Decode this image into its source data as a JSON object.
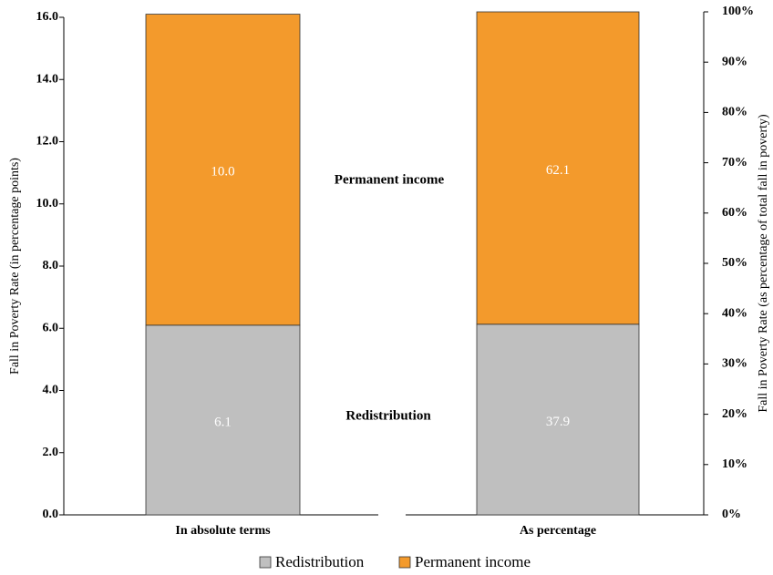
{
  "chart_data": [
    {
      "type": "stacked_bar",
      "y_label": "Fall in Poverty Rate (in percentage points)",
      "categories": [
        "In absolute terms"
      ],
      "series": [
        {
          "name": "Redistribution",
          "color": "#bfbfbf",
          "values": [
            6.1
          ]
        },
        {
          "name": "Permanent income",
          "color": "#f39a2c",
          "values": [
            10.0
          ],
          "value_labels": [
            "10.0"
          ]
        }
      ],
      "ylim": [
        0,
        16
      ],
      "yticks": [
        {
          "value": 0,
          "label": "0.0"
        },
        {
          "value": 2,
          "label": "2.0"
        },
        {
          "value": 4,
          "label": "4.0"
        },
        {
          "value": 6,
          "label": "6.0"
        },
        {
          "value": 8,
          "label": "8.0"
        },
        {
          "value": 10,
          "label": "10.0"
        },
        {
          "value": 12,
          "label": "12.0"
        },
        {
          "value": 14,
          "label": "14.0"
        },
        {
          "value": 16,
          "label": "16.0"
        }
      ],
      "annotations": [
        "Permanent income",
        "Redistribution"
      ],
      "legend": "bottom"
    },
    {
      "type": "stacked_bar",
      "y_label": "Fall in Poverty Rate (as percentage of total fall in poverty)",
      "categories": [
        "As percentage"
      ],
      "series": [
        {
          "color": "#bfbfbf",
          "values": [
            37.9
          ]
        },
        {
          "color": "#f39a2c",
          "values": [
            62.1
          ]
        }
      ],
      "ylim": [
        0,
        100
      ],
      "yticks": [
        {
          "value": 0,
          "label": "0%"
        },
        {
          "value": 10,
          "label": "10%"
        },
        {
          "value": 20,
          "label": "20%"
        },
        {
          "value": 30,
          "label": "30%"
        },
        {
          "value": 40,
          "label": "40%"
        },
        {
          "value": 50,
          "label": "50%"
        },
        {
          "value": 60,
          "label": "60%"
        },
        {
          "value": 70,
          "label": "70%"
        },
        {
          "value": 80,
          "label": "80%"
        },
        {
          "value": 90,
          "label": "90%"
        },
        {
          "value": 100,
          "label": "100%"
        }
      ],
      "axis_side": "right"
    }
  ]
}
